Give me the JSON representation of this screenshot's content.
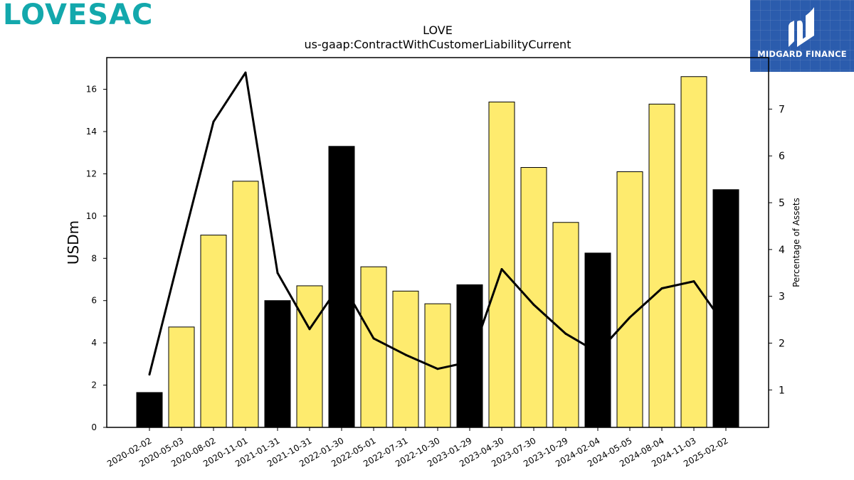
{
  "logo": {
    "text": "LOVESAC",
    "color": "#13a8ac"
  },
  "badge": {
    "text": "MIDGARD FINANCE",
    "bg": "#2b5cad"
  },
  "chart_data": {
    "type": "bar",
    "title": "LOVE",
    "subtitle": "us-gaap:ContractWithCustomerLiabilityCurrent",
    "ylabel": "USDm",
    "y2label": "Percentage of Assets",
    "ylim": [
      0,
      17.5
    ],
    "y2lim": [
      0.2,
      8.1
    ],
    "yticks": [
      "0",
      "2",
      "4",
      "6",
      "8",
      "10",
      "12",
      "14",
      "16"
    ],
    "y2ticks": [
      "1",
      "2",
      "3",
      "4",
      "5",
      "6",
      "7"
    ],
    "grid": false,
    "categories": [
      "2020-02-02",
      "2020-05-03",
      "2020-08-02",
      "2020-11-01",
      "2021-01-31",
      "2021-10-31",
      "2022-01-30",
      "2022-05-01",
      "2022-07-31",
      "2022-10-30",
      "2023-01-29",
      "2023-04-30",
      "2023-07-30",
      "2023-10-29",
      "2024-02-04",
      "2024-05-05",
      "2024-08-04",
      "2024-11-03",
      "2025-02-02"
    ],
    "series": [
      {
        "type": "bar",
        "axis": "left",
        "values": [
          1.65,
          4.75,
          9.1,
          11.65,
          6.0,
          6.7,
          13.3,
          7.6,
          6.45,
          5.85,
          6.75,
          15.4,
          12.3,
          9.7,
          8.25,
          12.1,
          15.3,
          16.6,
          11.25
        ],
        "colors": [
          "#000000",
          "#feeb6e",
          "#feeb6e",
          "#feeb6e",
          "#000000",
          "#feeb6e",
          "#000000",
          "#feeb6e",
          "#feeb6e",
          "#feeb6e",
          "#000000",
          "#feeb6e",
          "#feeb6e",
          "#feeb6e",
          "#000000",
          "#feeb6e",
          "#feeb6e",
          "#feeb6e",
          "#000000"
        ]
      },
      {
        "type": "line",
        "axis": "right",
        "color": "#000000",
        "values": [
          1.33,
          4.05,
          6.73,
          7.78,
          3.5,
          2.3,
          3.3,
          2.1,
          1.75,
          1.45,
          1.6,
          3.58,
          2.82,
          2.2,
          1.8,
          2.55,
          3.17,
          3.32,
          2.35
        ]
      }
    ]
  }
}
